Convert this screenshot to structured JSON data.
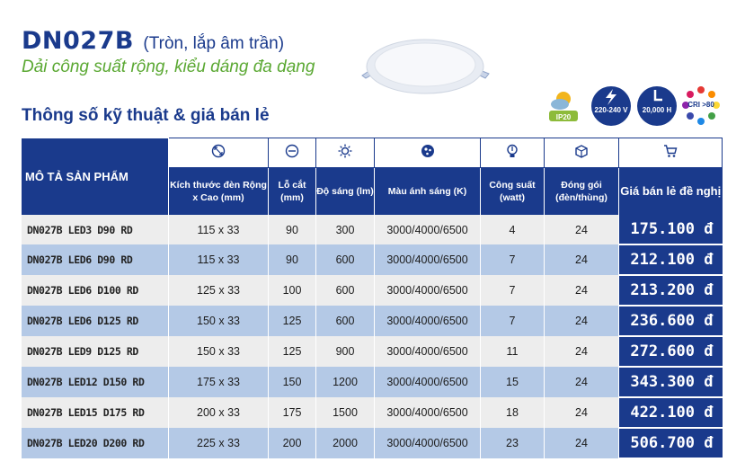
{
  "header": {
    "model": "DN027B",
    "subtitle": "(Tròn, lắp âm trần)",
    "tagline": "Dải công suất rộng, kiểu dáng đa dạng",
    "section_title": "Thông số kỹ thuật & giá bán lẻ"
  },
  "features": [
    {
      "icon": "ip-weather-icon",
      "label": "IP20"
    },
    {
      "icon": "voltage-icon",
      "label": "220-240 V"
    },
    {
      "icon": "lifetime-icon",
      "label": "20,000 H"
    },
    {
      "icon": "cri-icon",
      "label": "CRI >80"
    }
  ],
  "table": {
    "desc_header": "MÔ TẢ SẢN PHẨM",
    "columns": [
      {
        "icon": "size-icon",
        "label": "Kích thước đèn Rộng x Cao (mm)"
      },
      {
        "icon": "cutout-icon",
        "label": "Lỗ cắt (mm)"
      },
      {
        "icon": "brightness-icon",
        "label": "Độ sáng (lm)"
      },
      {
        "icon": "color-temp-icon",
        "label": "Màu ánh sáng (K)"
      },
      {
        "icon": "power-icon",
        "label": "Công suất (watt)"
      },
      {
        "icon": "package-icon",
        "label": "Đóng gói (đèn/thùng)"
      },
      {
        "icon": "cart-icon",
        "label": "Giá bán lẻ đề nghị"
      }
    ],
    "rows": [
      {
        "name": "DN027B LED3 D90 RD",
        "size": "115 x 33",
        "cut": "90",
        "lm": "300",
        "cct": "3000/4000/6500",
        "watt": "4",
        "pack": "24",
        "price": "175.100 đ"
      },
      {
        "name": "DN027B LED6 D90 RD",
        "size": "115 x 33",
        "cut": "90",
        "lm": "600",
        "cct": "3000/4000/6500",
        "watt": "7",
        "pack": "24",
        "price": "212.100 đ"
      },
      {
        "name": "DN027B LED6 D100 RD",
        "size": "125 x 33",
        "cut": "100",
        "lm": "600",
        "cct": "3000/4000/6500",
        "watt": "7",
        "pack": "24",
        "price": "213.200 đ"
      },
      {
        "name": "DN027B LED6 D125 RD",
        "size": "150 x 33",
        "cut": "125",
        "lm": "600",
        "cct": "3000/4000/6500",
        "watt": "7",
        "pack": "24",
        "price": "236.600 đ"
      },
      {
        "name": "DN027B LED9 D125 RD",
        "size": "150 x 33",
        "cut": "125",
        "lm": "900",
        "cct": "3000/4000/6500",
        "watt": "11",
        "pack": "24",
        "price": "272.600 đ"
      },
      {
        "name": "DN027B LED12 D150 RD",
        "size": "175 x 33",
        "cut": "150",
        "lm": "1200",
        "cct": "3000/4000/6500",
        "watt": "15",
        "pack": "24",
        "price": "343.300 đ"
      },
      {
        "name": "DN027B LED15 D175 RD",
        "size": "200 x 33",
        "cut": "175",
        "lm": "1500",
        "cct": "3000/4000/6500",
        "watt": "18",
        "pack": "24",
        "price": "422.100 đ"
      },
      {
        "name": "DN027B LED20 D200 RD",
        "size": "225 x 33",
        "cut": "200",
        "lm": "2000",
        "cct": "3000/4000/6500",
        "watt": "23",
        "pack": "24",
        "price": "506.700 đ"
      }
    ]
  },
  "colors": {
    "brand_blue": "#1a3a8c",
    "accent_green": "#5aa832",
    "row_odd": "#ededed",
    "row_even": "#b4c9e6"
  }
}
